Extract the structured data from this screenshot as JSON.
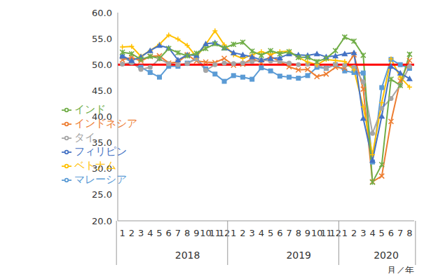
{
  "chart_data": {
    "type": "line",
    "xlabel": "月／年",
    "x_group_labels": [
      "2018",
      "2019",
      "2020"
    ],
    "categories": [
      "1",
      "2",
      "3",
      "4",
      "5",
      "6",
      "7",
      "8",
      "9",
      "10",
      "11",
      "12",
      "1",
      "2",
      "3",
      "4",
      "5",
      "6",
      "7",
      "8",
      "9",
      "10",
      "11",
      "12",
      "1",
      "2",
      "3",
      "4",
      "5",
      "6",
      "7",
      "8"
    ],
    "ylim": [
      20,
      60
    ],
    "yticks": [
      {
        "value": 20,
        "label": "20.0"
      },
      {
        "value": 25,
        "label": "25.0"
      },
      {
        "value": 30,
        "label": "30.0"
      },
      {
        "value": 35,
        "label": "35.0"
      },
      {
        "value": 40,
        "label": "40.0"
      },
      {
        "value": 45,
        "label": "45.0"
      },
      {
        "value": 50,
        "label": "50.0"
      },
      {
        "value": 55,
        "label": "55.0"
      },
      {
        "value": 60,
        "label": "60.0"
      }
    ],
    "grid": false,
    "legend": "left",
    "reference_line": {
      "value": 50,
      "color": "#ff0000"
    },
    "series": [
      {
        "name": "マレーシア",
        "color": "#5b9bd5",
        "marker": "square",
        "values": [
          51.5,
          50.5,
          49.5,
          48.5,
          47.6,
          49.7,
          49.7,
          50.3,
          51.2,
          49.2,
          48.2,
          46.8,
          47.9,
          47.6,
          47.2,
          49.4,
          48.8,
          47.8,
          47.6,
          47.4,
          47.9,
          49.5,
          49.3,
          50.0,
          48.8,
          48.5,
          48.4,
          31.3,
          45.6,
          51.0,
          50.0,
          49.3
        ]
      },
      {
        "name": "インドネシア",
        "color": "#ed7d31",
        "marker": "x",
        "values": [
          50.9,
          51.4,
          50.7,
          51.6,
          51.7,
          50.3,
          50.5,
          51.9,
          50.7,
          50.5,
          50.4,
          51.2,
          49.9,
          50.1,
          51.2,
          50.4,
          51.6,
          50.6,
          49.6,
          49.0,
          49.1,
          47.7,
          48.2,
          49.5,
          49.3,
          51.9,
          45.3,
          27.5,
          28.6,
          39.1,
          46.9,
          50.8
        ]
      },
      {
        "name": "タイ",
        "color": "#a5a5a5",
        "marker": "circle",
        "values": [
          50.1,
          50.4,
          49.1,
          49.5,
          51.1,
          50.2,
          50.0,
          50.2,
          51.1,
          48.9,
          50.0,
          50.3,
          50.2,
          50.3,
          50.6,
          50.9,
          50.7,
          50.6,
          50.3,
          50.0,
          50.1,
          49.9,
          49.3,
          50.1,
          49.9,
          49.5,
          46.7,
          36.8,
          41.6,
          43.5,
          46.1,
          49.7
        ]
      },
      {
        "name": "ベトナム",
        "color": "#ffc000",
        "marker": "plus",
        "values": [
          53.4,
          53.5,
          51.6,
          52.7,
          53.9,
          55.7,
          54.9,
          53.7,
          51.5,
          53.9,
          56.5,
          53.8,
          51.9,
          51.2,
          51.9,
          52.5,
          52.0,
          52.5,
          52.6,
          51.4,
          50.5,
          50.0,
          51.0,
          50.8,
          50.6,
          49.0,
          41.9,
          32.7,
          42.7,
          51.1,
          47.6,
          45.7
        ]
      },
      {
        "name": "フィリピン",
        "color": "#4472c4",
        "marker": "triangle",
        "values": [
          51.7,
          50.8,
          51.5,
          52.7,
          53.7,
          53.2,
          50.9,
          51.9,
          51.8,
          54.0,
          54.2,
          53.2,
          52.3,
          51.9,
          51.5,
          50.9,
          51.2,
          51.3,
          52.1,
          51.9,
          51.8,
          52.1,
          51.5,
          51.7,
          52.1,
          52.3,
          39.7,
          31.6,
          40.1,
          49.7,
          48.4,
          47.3
        ]
      },
      {
        "name": "インド",
        "color": "#70ad47",
        "marker": "star",
        "values": [
          52.4,
          52.1,
          51.0,
          51.6,
          51.2,
          53.1,
          52.3,
          51.7,
          52.2,
          53.1,
          54.0,
          53.2,
          53.9,
          54.3,
          52.6,
          51.8,
          52.7,
          52.1,
          52.5,
          51.4,
          51.4,
          50.6,
          51.2,
          52.7,
          55.3,
          54.5,
          51.8,
          27.4,
          30.8,
          47.2,
          46.0,
          52.0
        ]
      }
    ]
  }
}
